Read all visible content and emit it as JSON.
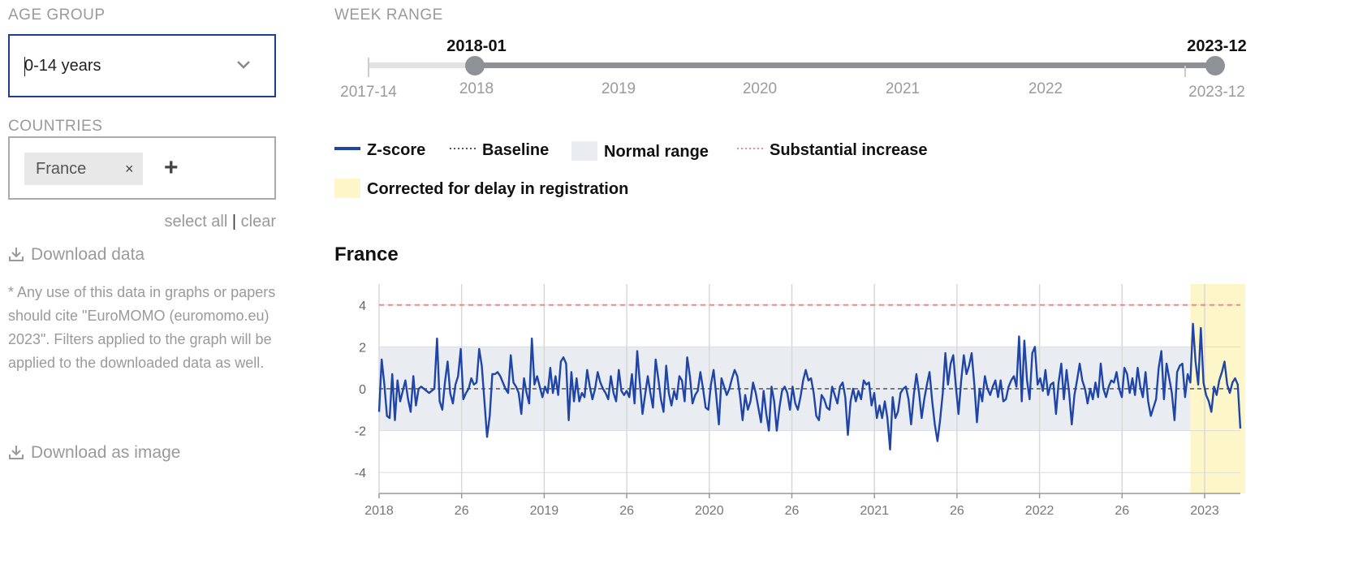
{
  "filters": {
    "age_group_label": "AGE GROUP",
    "age_group_value": "0-14 years",
    "countries_label": "COUNTRIES",
    "countries": [
      {
        "name": "France",
        "remove": "×"
      }
    ],
    "add_symbol": "+",
    "select_all": "select all",
    "separator": "|",
    "clear": "clear"
  },
  "actions": {
    "download_data": "Download data",
    "download_image": "Download as image",
    "note": "* Any use of this data in graphs or papers should cite \"EuroMOMO (euromomo.eu) 2023\". Filters applied to the graph will be applied to the downloaded data as well."
  },
  "week_range": {
    "label": "WEEK RANGE",
    "start_value": "2018-01",
    "end_value": "2023-12",
    "min_label": "2017-14",
    "max_label": "2023-12",
    "year_ticks": [
      "2018",
      "2019",
      "2020",
      "2021",
      "2022"
    ]
  },
  "legend": {
    "zscore": "Z-score",
    "baseline": "Baseline",
    "normal_range": "Normal range",
    "substantial_increase": "Substantial increase",
    "corrected": "Corrected for delay in registration"
  },
  "colors": {
    "zscore": "#1f45a8",
    "baseline": "#555555",
    "normal_range": "#e9edf2",
    "substantial_increase": "#f08a8a",
    "corrected": "#fdf6c8",
    "accent": "#1e3f8f"
  },
  "chart_data": {
    "type": "line",
    "title": "France",
    "x_tick_labels": [
      "2018",
      "26",
      "2019",
      "26",
      "2020",
      "26",
      "2021",
      "26",
      "2022",
      "26",
      "2023"
    ],
    "y_ticks": [
      4,
      2,
      0,
      -2,
      -4
    ],
    "ylim": [
      -5,
      5
    ],
    "baseline": 0,
    "normal_range": [
      -2,
      2
    ],
    "substantial_increase": 4,
    "series": [
      {
        "name": "Z-score",
        "x_unit": "week index from 2018-01",
        "values": [
          -1.1,
          1.4,
          0.2,
          -1.3,
          -1.4,
          0.7,
          -1.5,
          0.4,
          -0.6,
          -0.1,
          0.4,
          -0.5,
          -1.1,
          0.6,
          -0.8,
          0.0,
          0.1,
          0.0,
          -0.1,
          -0.2,
          -0.1,
          0.0,
          2.4,
          -0.6,
          -1.0,
          0.3,
          1.3,
          -0.2,
          -0.7,
          0.2,
          0.6,
          1.9,
          -0.5,
          -0.2,
          0.0,
          0.5,
          0.2,
          0.3,
          1.9,
          1.1,
          -0.6,
          -2.3,
          -1.3,
          0.7,
          0.7,
          0.8,
          0.6,
          0.3,
          0.0,
          -0.2,
          1.6,
          0.3,
          0.1,
          -0.2,
          -1.2,
          0.5,
          -0.2,
          -0.7,
          2.4,
          0.2,
          0.6,
          0.1,
          -0.4,
          0.1,
          -0.2,
          1.0,
          -0.2,
          0.6,
          -0.3,
          1.3,
          1.5,
          1.2,
          -1.5,
          0.8,
          -0.6,
          0.5,
          -0.6,
          -0.2,
          -0.4,
          0.9,
          0.1,
          -0.5,
          0.0,
          0.8,
          0.3,
          0.0,
          -0.2,
          -0.5,
          0.6,
          -0.2,
          -0.6,
          0.9,
          -0.1,
          -0.3,
          -0.1,
          -0.4,
          0.7,
          -0.7,
          1.8,
          0.3,
          -1.2,
          -0.3,
          0.6,
          -0.2,
          -0.9,
          1.4,
          0.5,
          -0.5,
          -1.1,
          1.1,
          -0.2,
          -0.8,
          -0.1,
          -0.5,
          0.6,
          0.4,
          -0.6,
          1.5,
          0.6,
          -0.7,
          -0.3,
          -0.1,
          0.8,
          0.0,
          -0.9,
          -1.0,
          0.2,
          0.9,
          -0.3,
          -1.7,
          0.5,
          0.1,
          -0.3,
          0.0,
          0.5,
          0.9,
          0.6,
          -0.3,
          -1.5,
          -0.3,
          -1.0,
          -0.6,
          0.3,
          -0.2,
          -0.9,
          -1.6,
          -0.1,
          -1.2,
          -2.0,
          0.1,
          -0.6,
          -2.0,
          -0.9,
          -0.1,
          0.1,
          -0.2,
          -1.0,
          0.1,
          -0.7,
          -1.0,
          -0.4,
          0.4,
          0.9,
          0.4,
          0.5,
          -0.2,
          -1.3,
          -1.5,
          -0.3,
          -0.5,
          -0.9,
          -1.0,
          0.1,
          -0.3,
          -0.7,
          0.1,
          0.3,
          -0.4,
          -2.2,
          -0.6,
          0.0,
          -0.6,
          -0.1,
          -0.5,
          0.4,
          0.2,
          0.3,
          -0.8,
          -0.2,
          -1.4,
          -0.8,
          -1.4,
          -0.6,
          -1.4,
          -2.9,
          -0.4,
          -1.4,
          -1.1,
          -0.2,
          0.0,
          0.1,
          -0.5,
          -1.7,
          -0.3,
          0.7,
          -0.2,
          -1.4,
          -0.5,
          0.2,
          0.8,
          -0.6,
          -1.7,
          -2.5,
          -1.5,
          -0.2,
          1.7,
          0.2,
          1.2,
          1.6,
          0.1,
          -1.2,
          0.4,
          1.6,
          0.7,
          1.1,
          1.7,
          0.2,
          -1.6,
          0.0,
          -0.6,
          0.6,
          0.0,
          -0.3,
          0.1,
          0.4,
          -0.4,
          0.4,
          -0.6,
          -0.5,
          0.1,
          0.4,
          0.6,
          0.1,
          2.5,
          -0.6,
          2.3,
          0.4,
          -0.5,
          1.7,
          2.0,
          0.2,
          0.5,
          -0.1,
          0.9,
          -0.3,
          0.2,
          0.3,
          -1.2,
          0.3,
          1.2,
          -0.5,
          0.9,
          -0.2,
          -1.7,
          -0.3,
          0.4,
          1.2,
          0.4,
          0.0,
          -0.7,
          0.0,
          -0.5,
          0.3,
          -0.4,
          1.2,
          0.0,
          -0.4,
          0.1,
          0.4,
          0.3,
          0.8,
          0.0,
          -0.4,
          1.0,
          0.7,
          -0.2,
          0.5,
          -0.3,
          1.0,
          0.1,
          -0.4,
          0.8,
          -0.6,
          -1.3,
          -0.9,
          -0.5,
          1.0,
          1.8,
          -0.5,
          1.2,
          0.5,
          -0.2,
          -1.5,
          0.8,
          1.1,
          1.2,
          -0.4,
          0.7,
          0.3,
          3.1,
          1.3,
          0.2,
          2.9,
          0.3,
          -0.3,
          -0.6,
          -1.1,
          0.1,
          -0.3,
          0.4,
          0.8,
          1.3,
          0.2,
          -0.2,
          0.3,
          0.5,
          0.2,
          -1.9
        ],
        "corrected_from_index": 308
      }
    ],
    "corrected_label": "Corrected for delay in registration"
  }
}
